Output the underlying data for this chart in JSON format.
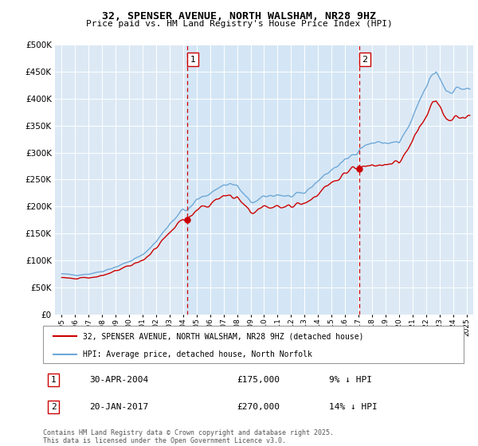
{
  "title": "32, SPENSER AVENUE, NORTH WALSHAM, NR28 9HZ",
  "subtitle": "Price paid vs. HM Land Registry's House Price Index (HPI)",
  "legend_line1": "32, SPENSER AVENUE, NORTH WALSHAM, NR28 9HZ (detached house)",
  "legend_line2": "HPI: Average price, detached house, North Norfolk",
  "annotation1_date": "30-APR-2004",
  "annotation1_price": "£175,000",
  "annotation1_hpi": "9% ↓ HPI",
  "annotation2_date": "20-JAN-2017",
  "annotation2_price": "£270,000",
  "annotation2_hpi": "14% ↓ HPI",
  "vline1_x": 2004.33,
  "vline2_x": 2017.05,
  "purchase1_value": 175000,
  "purchase2_value": 270000,
  "price_color": "#cc0000",
  "hpi_color": "#6ea8d8",
  "shade_color": "#d0e4f5",
  "background_color": "#dce9f5",
  "plot_bg_color": "#dce9f5",
  "ylim": [
    0,
    500000
  ],
  "xlim": [
    1994.5,
    2025.5
  ],
  "yticks": [
    0,
    50000,
    100000,
    150000,
    200000,
    250000,
    300000,
    350000,
    400000,
    450000,
    500000
  ],
  "xticks": [
    1995,
    1996,
    1997,
    1998,
    1999,
    2000,
    2001,
    2002,
    2003,
    2004,
    2005,
    2006,
    2007,
    2008,
    2009,
    2010,
    2011,
    2012,
    2013,
    2014,
    2015,
    2016,
    2017,
    2018,
    2019,
    2020,
    2021,
    2022,
    2023,
    2024,
    2025
  ],
  "footer": "Contains HM Land Registry data © Crown copyright and database right 2025.\nThis data is licensed under the Open Government Licence v3.0."
}
